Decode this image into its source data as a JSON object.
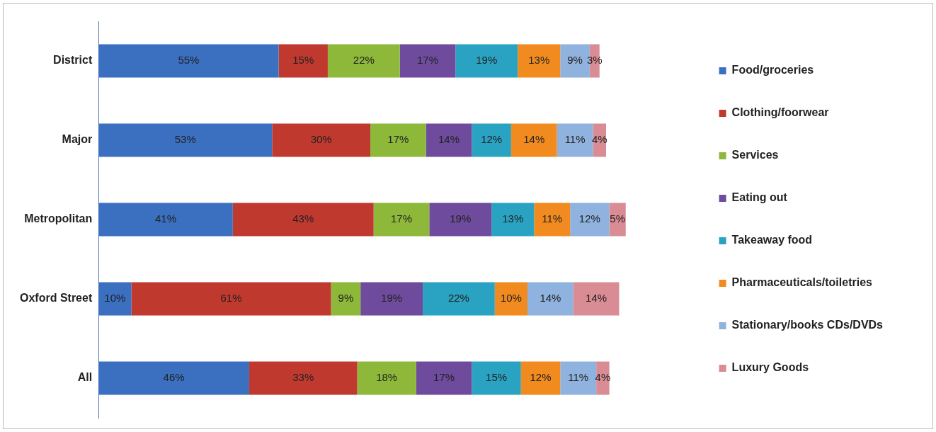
{
  "chart_data": {
    "type": "bar",
    "orientation": "horizontal",
    "stacked": true,
    "legend": "right",
    "tick_labels": "y",
    "grid": false,
    "categories": [
      "District",
      "Major",
      "Metropolitan",
      "Oxford Street",
      "All"
    ],
    "series": [
      {
        "name": "Food/groceries",
        "color": "#3b6fc0",
        "values": [
          55,
          53,
          41,
          10,
          46
        ],
        "value_labels": [
          "55%",
          "53%",
          "41%",
          "10%",
          "46%"
        ]
      },
      {
        "name": "Clothing/foorwear",
        "color": "#c0392f",
        "values": [
          15,
          30,
          43,
          61,
          33
        ],
        "value_labels": [
          "15%",
          "30%",
          "43%",
          "61%",
          "33%"
        ]
      },
      {
        "name": "Services",
        "color": "#8db83a",
        "values": [
          22,
          17,
          17,
          9,
          18
        ],
        "value_labels": [
          "22%",
          "17%",
          "17%",
          "9%",
          "18%"
        ]
      },
      {
        "name": "Eating out",
        "color": "#6e4b9c",
        "values": [
          17,
          14,
          19,
          19,
          17
        ],
        "value_labels": [
          "17%",
          "14%",
          "19%",
          "19%",
          "17%"
        ]
      },
      {
        "name": "Takeaway food",
        "color": "#2aa3c2",
        "values": [
          19,
          12,
          13,
          22,
          15
        ],
        "value_labels": [
          "19%",
          "12%",
          "13%",
          "22%",
          "15%"
        ]
      },
      {
        "name": "Pharmaceuticals/toiletries",
        "color": "#f28b1f",
        "values": [
          13,
          14,
          11,
          10,
          12
        ],
        "value_labels": [
          "13%",
          "14%",
          "11%",
          "10%",
          "12%"
        ]
      },
      {
        "name": "Stationary/books CDs/DVDs",
        "color": "#90b2de",
        "values": [
          9,
          11,
          12,
          14,
          11
        ],
        "value_labels": [
          "9%",
          "11%",
          "12%",
          "14%",
          "11%"
        ]
      },
      {
        "name": "Luxury Goods",
        "color": "#d98c93",
        "values": [
          3,
          4,
          5,
          14,
          4
        ],
        "value_labels": [
          "3%",
          "4%",
          "5%",
          "14%",
          "4%"
        ]
      }
    ]
  }
}
